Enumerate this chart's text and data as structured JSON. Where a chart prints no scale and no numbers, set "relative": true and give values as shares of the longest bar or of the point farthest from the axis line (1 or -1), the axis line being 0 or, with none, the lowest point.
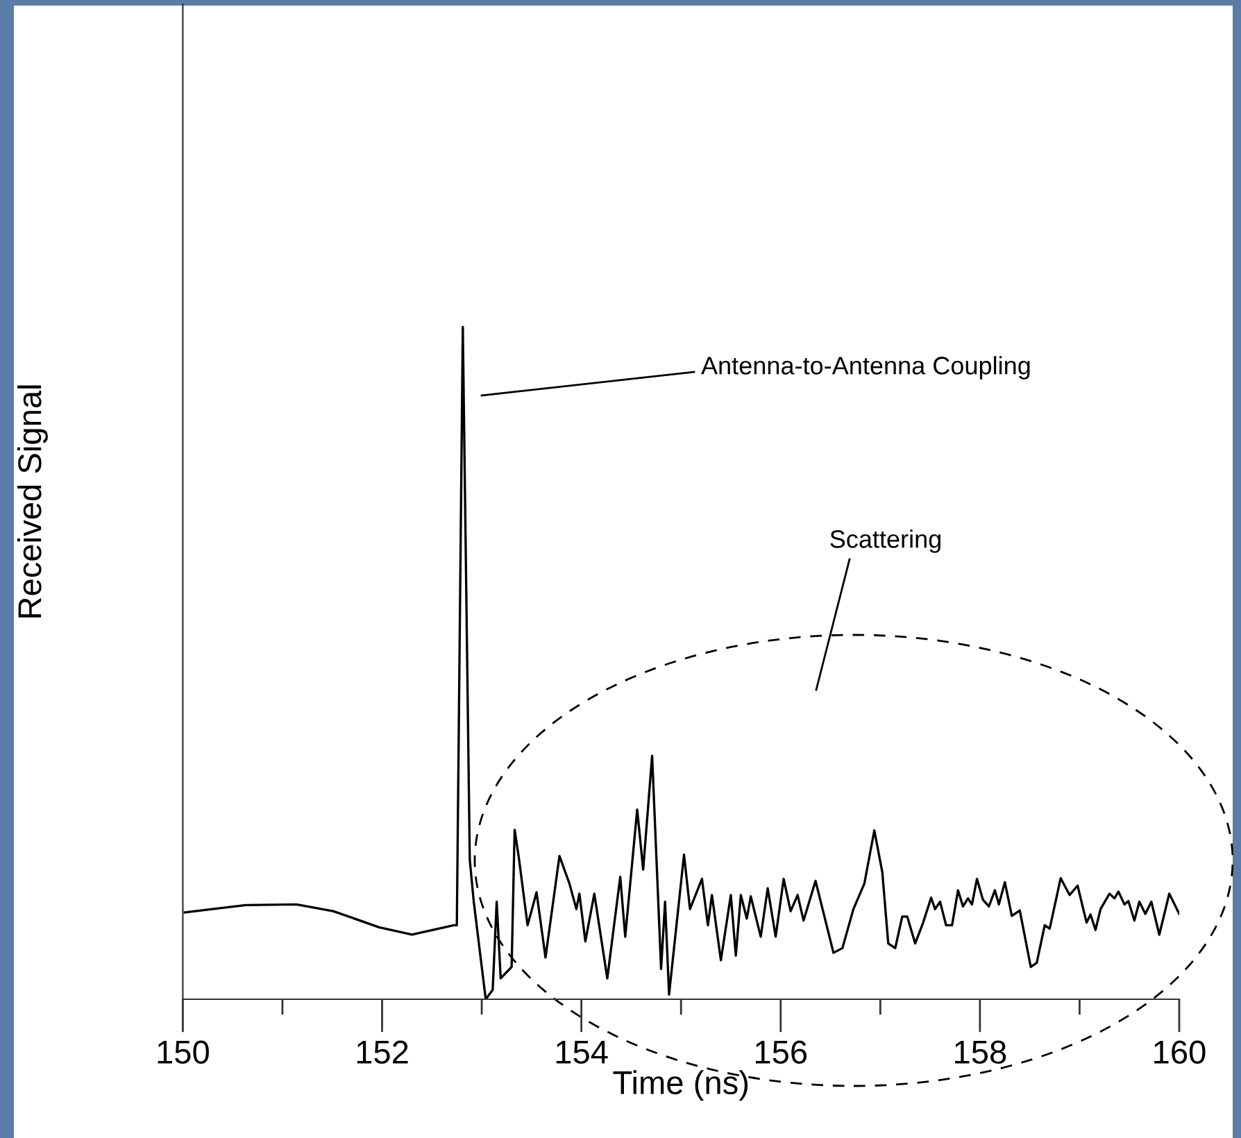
{
  "chart_data": {
    "type": "line",
    "xlabel": "Time (ns)",
    "ylabel": "Received Signal",
    "relative": true,
    "xlim": [
      150,
      160
    ],
    "xticks": [
      150,
      {
        "value": 151,
        "label": null
      },
      152,
      {
        "value": 153,
        "label": null
      },
      154,
      {
        "value": 155,
        "label": null
      },
      156,
      {
        "value": 157,
        "label": null
      },
      158,
      {
        "value": 159,
        "label": null
      },
      160
    ],
    "grid": false,
    "line_style": "solid",
    "marker": "none",
    "annotations": [
      "Antenna-to-Antenna Coupling",
      "Scattering"
    ],
    "series": [
      {
        "color": "#000000",
        "x": [
          150.02,
          150.63,
          151.14,
          151.51,
          151.97,
          152.3,
          152.72,
          152.75,
          152.81,
          152.88,
          152.92,
          153.04,
          153.11,
          153.15,
          153.19,
          153.3,
          153.33,
          153.37,
          153.46,
          153.55,
          153.64,
          153.78,
          153.88,
          153.95,
          153.98,
          154.04,
          154.13,
          154.26,
          154.39,
          154.44,
          154.56,
          154.62,
          154.71,
          154.8,
          154.84,
          154.88,
          155.03,
          155.09,
          155.21,
          155.27,
          155.31,
          155.4,
          155.5,
          155.55,
          155.6,
          155.66,
          155.7,
          155.8,
          155.87,
          155.95,
          156.03,
          156.1,
          156.17,
          156.23,
          156.35,
          156.53,
          156.62,
          156.73,
          156.84,
          156.94,
          157.02,
          157.08,
          157.15,
          157.22,
          157.27,
          157.35,
          157.43,
          157.51,
          157.55,
          157.6,
          157.66,
          157.72,
          157.78,
          157.83,
          157.88,
          157.92,
          157.97,
          158.03,
          158.09,
          158.15,
          158.19,
          158.25,
          158.32,
          158.4,
          158.51,
          158.57,
          158.65,
          158.7,
          158.81,
          158.9,
          158.98,
          159.07,
          159.11,
          159.16,
          159.21,
          159.3,
          159.35,
          159.39,
          159.45,
          159.49,
          159.55,
          159.6,
          159.66,
          159.72,
          159.8,
          159.9,
          160.0
        ],
        "values": [
          0.129,
          0.14,
          0.141,
          0.131,
          0.107,
          0.096,
          0.11,
          0.11,
          1.0,
          0.207,
          0.145,
          0.0,
          0.014,
          0.145,
          0.031,
          0.048,
          0.252,
          0.213,
          0.11,
          0.159,
          0.062,
          0.213,
          0.172,
          0.134,
          0.157,
          0.086,
          0.157,
          0.031,
          0.182,
          0.093,
          0.282,
          0.193,
          0.362,
          0.045,
          0.145,
          0.007,
          0.215,
          0.134,
          0.179,
          0.11,
          0.155,
          0.058,
          0.155,
          0.065,
          0.155,
          0.12,
          0.153,
          0.093,
          0.165,
          0.093,
          0.179,
          0.131,
          0.155,
          0.117,
          0.176,
          0.069,
          0.076,
          0.134,
          0.172,
          0.251,
          0.189,
          0.083,
          0.076,
          0.123,
          0.123,
          0.083,
          0.114,
          0.151,
          0.134,
          0.145,
          0.11,
          0.11,
          0.162,
          0.138,
          0.15,
          0.141,
          0.179,
          0.148,
          0.138,
          0.162,
          0.141,
          0.174,
          0.124,
          0.132,
          0.048,
          0.054,
          0.11,
          0.105,
          0.18,
          0.155,
          0.169,
          0.114,
          0.126,
          0.103,
          0.134,
          0.157,
          0.15,
          0.16,
          0.141,
          0.146,
          0.117,
          0.145,
          0.127,
          0.145,
          0.096,
          0.157,
          0.127
        ]
      }
    ]
  }
}
